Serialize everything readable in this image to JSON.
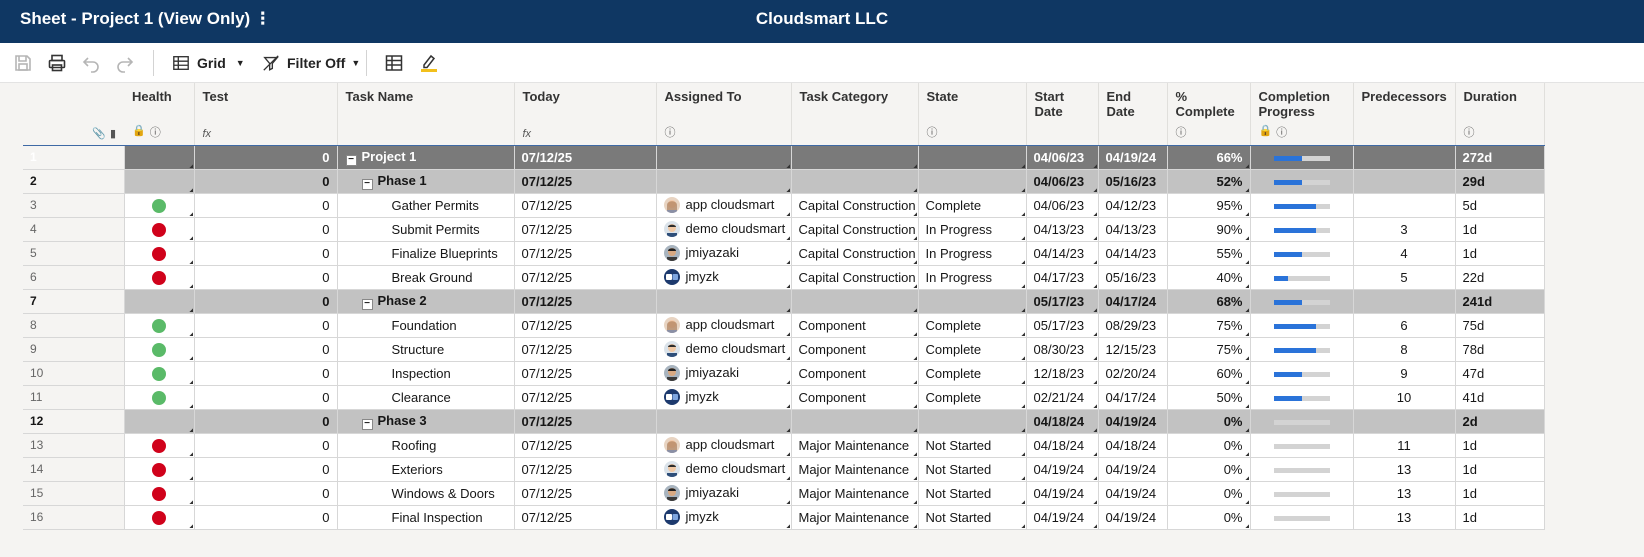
{
  "header": {
    "doc_title": "Sheet - Project 1 (View Only)",
    "kebab": "⋮",
    "org_title": "Cloudsmart LLC",
    "bg_color": "#0f3763"
  },
  "toolbar": {
    "view_label": "Grid",
    "filter_label": "Filter Off"
  },
  "columns": [
    {
      "key": "health",
      "label": "Health"
    },
    {
      "key": "test",
      "label": "Test"
    },
    {
      "key": "task",
      "label": "Task Name"
    },
    {
      "key": "today",
      "label": "Today"
    },
    {
      "key": "assigned",
      "label": "Assigned To"
    },
    {
      "key": "category",
      "label": "Task Category"
    },
    {
      "key": "state",
      "label": "State"
    },
    {
      "key": "start",
      "label": "Start Date"
    },
    {
      "key": "end",
      "label": "End Date"
    },
    {
      "key": "pct",
      "label": "% Complete"
    },
    {
      "key": "progress",
      "label": "Completion Progress"
    },
    {
      "key": "pred",
      "label": "Predecessors"
    },
    {
      "key": "duration",
      "label": "Duration"
    }
  ],
  "colors": {
    "health_green": "#5aba68",
    "health_red": "#d0021b",
    "progress_fill": "#2a73d9",
    "parent_row": "#7a7a7a",
    "phase_row": "#c2c2c2"
  },
  "rows": [
    {
      "num": "1",
      "level": 0,
      "health": "",
      "test": "0",
      "task": "Project 1",
      "today": "07/12/25",
      "assigned": "",
      "avatar": "",
      "category": "",
      "state": "",
      "start": "04/06/23",
      "end": "04/19/24",
      "pct": "66%",
      "progress": 0.5,
      "pred": "",
      "duration": "272d"
    },
    {
      "num": "2",
      "level": 1,
      "health": "",
      "test": "0",
      "task": "Phase 1",
      "today": "07/12/25",
      "assigned": "",
      "avatar": "",
      "category": "",
      "state": "",
      "start": "04/06/23",
      "end": "05/16/23",
      "pct": "52%",
      "progress": 0.5,
      "pred": "",
      "duration": "29d"
    },
    {
      "num": "3",
      "level": 2,
      "health": "green",
      "test": "0",
      "task": "Gather Permits",
      "today": "07/12/25",
      "assigned": "app cloudsmart",
      "avatar": "woman",
      "category": "Capital Construction",
      "state": "Complete",
      "start": "04/06/23",
      "end": "04/12/23",
      "pct": "95%",
      "progress": 0.75,
      "pred": "",
      "duration": "5d"
    },
    {
      "num": "4",
      "level": 2,
      "health": "red",
      "test": "0",
      "task": "Submit Permits",
      "today": "07/12/25",
      "assigned": "demo cloudsmart",
      "avatar": "man",
      "category": "Capital Construction",
      "state": "In Progress",
      "start": "04/13/23",
      "end": "04/13/23",
      "pct": "90%",
      "progress": 0.75,
      "pred": "3",
      "duration": "1d"
    },
    {
      "num": "5",
      "level": 2,
      "health": "red",
      "test": "0",
      "task": "Finalize Blueprints",
      "today": "07/12/25",
      "assigned": "jmiyazaki",
      "avatar": "photo",
      "category": "Capital Construction",
      "state": "In Progress",
      "start": "04/14/23",
      "end": "04/14/23",
      "pct": "55%",
      "progress": 0.5,
      "pred": "4",
      "duration": "1d"
    },
    {
      "num": "6",
      "level": 2,
      "health": "red",
      "test": "0",
      "task": "Break Ground",
      "today": "07/12/25",
      "assigned": "jmyzk",
      "avatar": "logo",
      "category": "Capital Construction",
      "state": "In Progress",
      "start": "04/17/23",
      "end": "05/16/23",
      "pct": "40%",
      "progress": 0.25,
      "pred": "5",
      "duration": "22d"
    },
    {
      "num": "7",
      "level": 1,
      "health": "",
      "test": "0",
      "task": "Phase 2",
      "today": "07/12/25",
      "assigned": "",
      "avatar": "",
      "category": "",
      "state": "",
      "start": "05/17/23",
      "end": "04/17/24",
      "pct": "68%",
      "progress": 0.5,
      "pred": "",
      "duration": "241d"
    },
    {
      "num": "8",
      "level": 2,
      "health": "green",
      "test": "0",
      "task": "Foundation",
      "today": "07/12/25",
      "assigned": "app cloudsmart",
      "avatar": "woman",
      "category": "Component",
      "state": "Complete",
      "start": "05/17/23",
      "end": "08/29/23",
      "pct": "75%",
      "progress": 0.75,
      "pred": "6",
      "duration": "75d"
    },
    {
      "num": "9",
      "level": 2,
      "health": "green",
      "test": "0",
      "task": "Structure",
      "today": "07/12/25",
      "assigned": "demo cloudsmart",
      "avatar": "man",
      "category": "Component",
      "state": "Complete",
      "start": "08/30/23",
      "end": "12/15/23",
      "pct": "75%",
      "progress": 0.75,
      "pred": "8",
      "duration": "78d"
    },
    {
      "num": "10",
      "level": 2,
      "health": "green",
      "test": "0",
      "task": "Inspection",
      "today": "07/12/25",
      "assigned": "jmiyazaki",
      "avatar": "photo",
      "category": "Component",
      "state": "Complete",
      "start": "12/18/23",
      "end": "02/20/24",
      "pct": "60%",
      "progress": 0.5,
      "pred": "9",
      "duration": "47d"
    },
    {
      "num": "11",
      "level": 2,
      "health": "green",
      "test": "0",
      "task": "Clearance",
      "today": "07/12/25",
      "assigned": "jmyzk",
      "avatar": "logo",
      "category": "Component",
      "state": "Complete",
      "start": "02/21/24",
      "end": "04/17/24",
      "pct": "50%",
      "progress": 0.5,
      "pred": "10",
      "duration": "41d"
    },
    {
      "num": "12",
      "level": 1,
      "health": "",
      "test": "0",
      "task": "Phase 3",
      "today": "07/12/25",
      "assigned": "",
      "avatar": "",
      "category": "",
      "state": "",
      "start": "04/18/24",
      "end": "04/19/24",
      "pct": "0%",
      "progress": 0,
      "pred": "",
      "duration": "2d"
    },
    {
      "num": "13",
      "level": 2,
      "health": "red",
      "test": "0",
      "task": "Roofing",
      "today": "07/12/25",
      "assigned": "app cloudsmart",
      "avatar": "woman",
      "category": "Major Maintenance",
      "state": "Not Started",
      "start": "04/18/24",
      "end": "04/18/24",
      "pct": "0%",
      "progress": 0,
      "pred": "11",
      "duration": "1d"
    },
    {
      "num": "14",
      "level": 2,
      "health": "red",
      "test": "0",
      "task": "Exteriors",
      "today": "07/12/25",
      "assigned": "demo cloudsmart",
      "avatar": "man",
      "category": "Major Maintenance",
      "state": "Not Started",
      "start": "04/19/24",
      "end": "04/19/24",
      "pct": "0%",
      "progress": 0,
      "pred": "13",
      "duration": "1d"
    },
    {
      "num": "15",
      "level": 2,
      "health": "red",
      "test": "0",
      "task": "Windows & Doors",
      "today": "07/12/25",
      "assigned": "jmiyazaki",
      "avatar": "photo",
      "category": "Major Maintenance",
      "state": "Not Started",
      "start": "04/19/24",
      "end": "04/19/24",
      "pct": "0%",
      "progress": 0,
      "pred": "13",
      "duration": "1d"
    },
    {
      "num": "16",
      "level": 2,
      "health": "red",
      "test": "0",
      "task": "Final Inspection",
      "today": "07/12/25",
      "assigned": "jmyzk",
      "avatar": "logo",
      "category": "Major Maintenance",
      "state": "Not Started",
      "start": "04/19/24",
      "end": "04/19/24",
      "pct": "0%",
      "progress": 0,
      "pred": "13",
      "duration": "1d"
    }
  ]
}
